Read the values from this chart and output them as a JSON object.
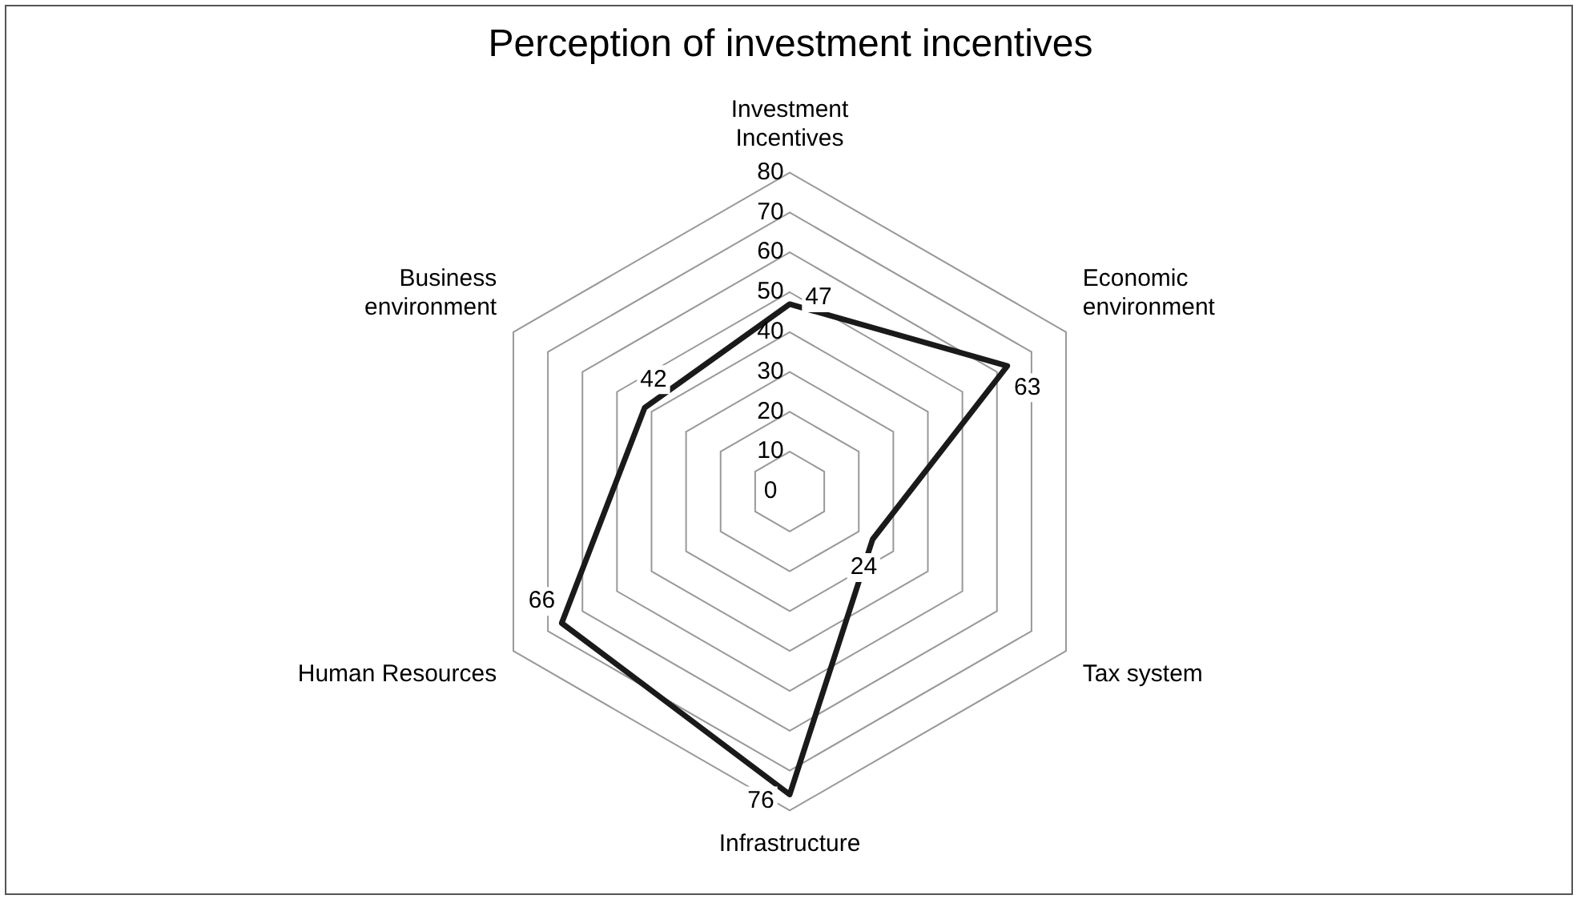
{
  "chart_data": {
    "type": "radar",
    "title": "Perception of investment incentives",
    "categories": [
      "Investment\nIncentives",
      "Economic\nenvironment",
      "Tax system",
      "Infrastructure",
      "Human Resources",
      "Business\nenvironment"
    ],
    "series": [
      {
        "color": "#1a1a1a",
        "values": [
          47,
          63,
          24,
          76,
          66,
          42
        ]
      }
    ],
    "ylim": [
      0,
      80
    ],
    "yticks": [
      0,
      10,
      20,
      30,
      40,
      50,
      60,
      70,
      80
    ],
    "grid": true,
    "legend": false,
    "marker": "none",
    "line_style": "solid",
    "data_labels": true
  }
}
